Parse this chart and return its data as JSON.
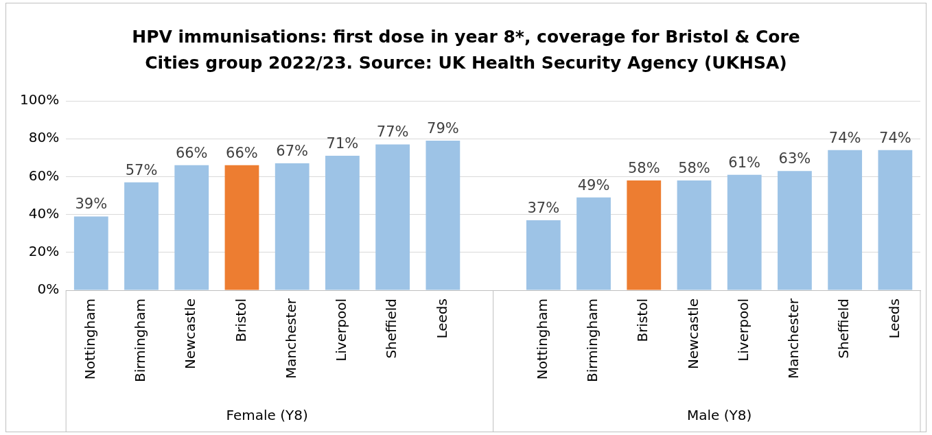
{
  "chart_data": {
    "type": "bar",
    "title": "HPV immunisations: first dose in year 8*, coverage for Bristol & Core Cities group 2022/23. Source: UK Health Security Agency (UKHSA)",
    "categories": [
      "Nottingham",
      "Birmingham",
      "Newcastle",
      "Bristol",
      "Manchester",
      "Liverpool",
      "Sheffield",
      "Leeds",
      null,
      "Nottingham",
      "Birmingham",
      "Bristol",
      "Newcastle",
      "Liverpool",
      "Manchester",
      "Sheffield",
      "Leeds"
    ],
    "values": [
      39,
      57,
      66,
      66,
      67,
      71,
      77,
      79,
      null,
      37,
      49,
      58,
      58,
      61,
      63,
      74,
      74
    ],
    "value_labels": [
      "39%",
      "57%",
      "66%",
      "66%",
      "67%",
      "71%",
      "77%",
      "79%",
      null,
      "37%",
      "49%",
      "58%",
      "58%",
      "61%",
      "63%",
      "74%",
      "74%"
    ],
    "colors": [
      "#9dc3e6",
      "#9dc3e6",
      "#9dc3e6",
      "#ed7d31",
      "#9dc3e6",
      "#9dc3e6",
      "#9dc3e6",
      "#9dc3e6",
      "#9dc3e6",
      "#9dc3e6",
      "#9dc3e6",
      "#ed7d31",
      "#9dc3e6",
      "#9dc3e6",
      "#9dc3e6",
      "#9dc3e6",
      "#9dc3e6"
    ],
    "ylim": [
      0,
      100
    ],
    "yticks": [
      {
        "value": 0,
        "label": "0%"
      },
      {
        "value": 20,
        "label": "20%"
      },
      {
        "value": 40,
        "label": "40%"
      },
      {
        "value": 60,
        "label": "60%"
      },
      {
        "value": 80,
        "label": "80%"
      },
      {
        "value": 100,
        "label": "100%"
      }
    ],
    "grid": "y",
    "annotations": [
      "Female (Y8)",
      "Male (Y8)"
    ]
  }
}
